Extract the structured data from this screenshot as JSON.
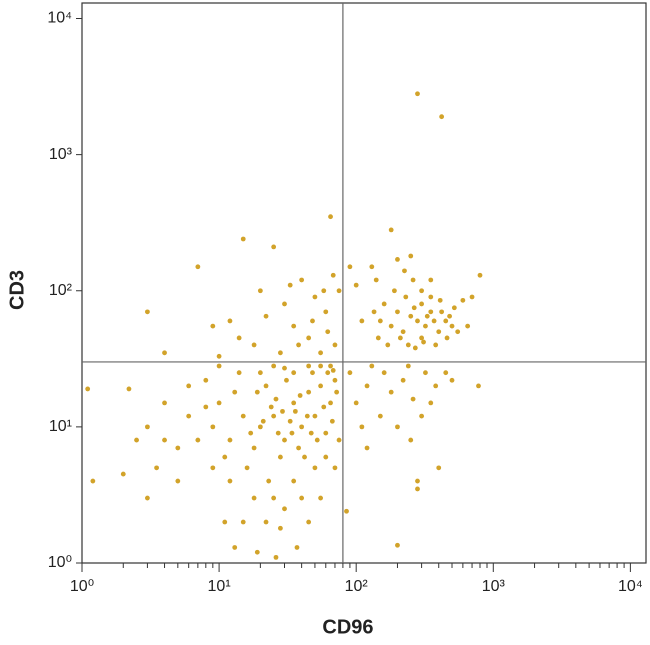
{
  "chart_data": {
    "type": "scatter",
    "xlabel": "CD96",
    "ylabel": "CD3",
    "log_x": true,
    "log_y": true,
    "xlim": [
      1,
      13000
    ],
    "ylim": [
      1,
      13000
    ],
    "xticks": [
      {
        "value": 1,
        "label": "10⁰"
      },
      {
        "value": 10,
        "label": "10¹"
      },
      {
        "value": 100,
        "label": "10²"
      },
      {
        "value": 1000,
        "label": "10³"
      },
      {
        "value": 10000,
        "label": "10⁴"
      }
    ],
    "yticks": [
      {
        "value": 1,
        "label": "10⁰"
      },
      {
        "value": 10,
        "label": "10¹"
      },
      {
        "value": 100,
        "label": "10²"
      },
      {
        "value": 1000,
        "label": "10³"
      },
      {
        "value": 10000,
        "label": "10⁴"
      }
    ],
    "xminorticks": [
      2,
      3,
      4,
      5,
      6,
      7,
      8,
      9,
      20,
      30,
      40,
      50,
      60,
      70,
      80,
      90,
      200,
      300,
      400,
      500,
      600,
      700,
      800,
      900,
      2000,
      3000,
      4000,
      5000,
      6000,
      7000,
      8000,
      9000
    ],
    "quadrant_lines": {
      "x": 80,
      "y": 30,
      "color": "#666666"
    },
    "series": [
      {
        "color": "#d2a32a",
        "x": [
          20,
          25,
          30,
          35,
          18,
          22,
          28,
          40,
          45,
          15,
          33,
          27,
          24,
          38,
          50,
          55,
          60,
          12,
          10,
          16,
          19,
          23,
          31,
          36,
          42,
          48,
          52,
          65,
          70,
          14,
          11,
          9,
          26,
          29,
          34,
          21,
          17,
          39,
          44,
          47,
          58,
          62,
          67,
          13,
          8,
          7,
          6,
          5,
          4,
          3,
          2.5,
          3.5,
          5,
          6,
          8,
          10,
          12,
          18,
          25,
          30,
          35,
          40,
          22,
          15,
          28,
          45,
          50,
          55,
          60,
          20,
          25,
          30,
          35,
          45,
          55,
          65,
          70,
          75,
          72,
          68,
          3,
          2,
          1.2,
          1.1,
          2.2,
          4,
          9,
          11,
          13,
          19,
          37,
          26,
          3,
          4,
          7,
          12,
          15,
          20,
          25,
          30,
          35,
          40,
          45,
          50,
          55,
          60,
          65,
          70,
          10,
          18,
          22,
          28,
          33,
          48,
          38,
          58,
          9,
          14,
          62,
          75,
          68,
          150,
          180,
          200,
          220,
          250,
          280,
          300,
          320,
          350,
          400,
          450,
          500,
          160,
          190,
          230,
          260,
          300,
          350,
          420,
          480,
          550,
          170,
          210,
          240,
          270,
          310,
          380,
          140,
          130,
          180,
          200,
          250,
          300,
          350,
          600,
          700,
          800,
          650,
          135,
          145,
          225,
          265,
          330,
          370,
          410,
          460,
          520,
          280,
          420,
          90,
          100,
          110,
          90,
          100,
          120,
          150,
          180,
          200,
          220,
          250,
          300,
          350,
          400,
          280,
          280,
          200,
          120,
          160,
          240,
          320,
          380,
          500,
          780,
          450,
          110,
          85,
          130,
          260
        ],
        "values": [
          10,
          12,
          8,
          15,
          7,
          20,
          6,
          10,
          18,
          12,
          11,
          9,
          14,
          7,
          12,
          20,
          9,
          8,
          15,
          5,
          18,
          4,
          22,
          13,
          6,
          25,
          8,
          15,
          22,
          25,
          6,
          10,
          16,
          13,
          9,
          11,
          9,
          17,
          12,
          9,
          14,
          25,
          11,
          18,
          14,
          8,
          12,
          7,
          15,
          10,
          8,
          5,
          4,
          20,
          22,
          28,
          4,
          3,
          3,
          2.5,
          4,
          3,
          2,
          2,
          1.8,
          2,
          5,
          3,
          6,
          25,
          28,
          27,
          25,
          28,
          28,
          28,
          5,
          8,
          18,
          26,
          3,
          4.5,
          4,
          19,
          19,
          8,
          5,
          2,
          1.3,
          1.2,
          1.3,
          1.1,
          70,
          35,
          150,
          60,
          240,
          100,
          210,
          80,
          55,
          120,
          45,
          90,
          35,
          70,
          350,
          40,
          33,
          40,
          65,
          35,
          110,
          60,
          40,
          100,
          55,
          45,
          50,
          100,
          130,
          60,
          55,
          70,
          50,
          65,
          60,
          45,
          55,
          70,
          50,
          60,
          55,
          80,
          100,
          90,
          120,
          80,
          90,
          70,
          65,
          50,
          40,
          45,
          40,
          38,
          42,
          40,
          120,
          150,
          280,
          170,
          180,
          100,
          120,
          85,
          90,
          130,
          55,
          70,
          45,
          140,
          75,
          65,
          60,
          85,
          45,
          75,
          2800,
          1900,
          150,
          110,
          60,
          25,
          15,
          20,
          12,
          18,
          10,
          22,
          8,
          12,
          15,
          5,
          4,
          3.5,
          1.35,
          7,
          25,
          28,
          25,
          20,
          22,
          20,
          25,
          10,
          2.4,
          28,
          16
        ]
      }
    ]
  }
}
